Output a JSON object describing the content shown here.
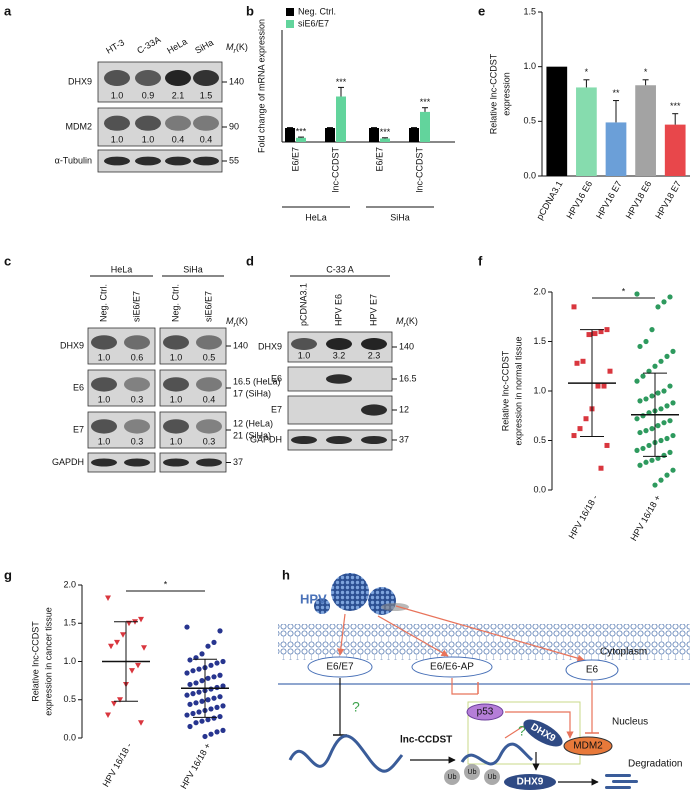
{
  "panel_labels": [
    "a",
    "b",
    "c",
    "d",
    "e",
    "f",
    "g",
    "h"
  ],
  "blots": {
    "a": {
      "mr": [
        "M",
        "r",
        "(K)"
      ],
      "lanes": [
        "HT-3",
        "C-33A",
        "HeLa",
        "SiHa"
      ],
      "rows": [
        {
          "label": "DHX9",
          "ratios": [
            "1.0",
            "0.9",
            "2.1",
            "1.5"
          ],
          "mw": [
            "140"
          ]
        },
        {
          "label": "MDM2",
          "ratios": [
            "1.0",
            "1.0",
            "0.4",
            "0.4"
          ],
          "mw": [
            "90"
          ]
        },
        {
          "label": "α-Tubulin",
          "mw": [
            "55"
          ]
        }
      ]
    },
    "c": {
      "mr": [
        "M",
        "r",
        "(K)"
      ],
      "groups": [
        "HeLa",
        "SiHa"
      ],
      "lanes": [
        "Neg. Ctrl.",
        "siE6/E7",
        "Neg. Ctrl.",
        "siE6/E7"
      ],
      "rows": [
        {
          "label": "DHX9",
          "ratios": [
            "1.0",
            "0.6",
            "1.0",
            "0.5"
          ],
          "mw": [
            "140"
          ]
        },
        {
          "label": "E6",
          "ratios": [
            "1.0",
            "0.3",
            "1.0",
            "0.4"
          ],
          "mw": [
            "16.5 (HeLa)",
            "17 (SiHa)"
          ]
        },
        {
          "label": "E7",
          "ratios": [
            "1.0",
            "0.3",
            "1.0",
            "0.3"
          ],
          "mw": [
            "12 (HeLa)",
            "21 (SiHa)"
          ]
        },
        {
          "label": "GAPDH",
          "mw": [
            "37"
          ]
        }
      ]
    },
    "d": {
      "mr": [
        "M",
        "r",
        "(K)"
      ],
      "groups": [
        "C-33 A"
      ],
      "lanes": [
        "pCDNA3.1",
        "HPV E6",
        "HPV E7"
      ],
      "rows": [
        {
          "label": "DHX9",
          "ratios": [
            "1.0",
            "3.2",
            "2.3"
          ],
          "mw": [
            "140"
          ]
        },
        {
          "label": "E6",
          "mw": [
            "16.5"
          ]
        },
        {
          "label": "E7",
          "mw": [
            "12"
          ]
        },
        {
          "label": "GAPDH",
          "mw": [
            "37"
          ]
        }
      ]
    }
  },
  "chart_data": [
    {
      "type": "groupbar",
      "ylabel": "Fold change of mRNA expression",
      "categories": [
        "E6/E7",
        "lnc-CCDST",
        "E6/E7",
        "lnc-CCDST"
      ],
      "groups": [
        "HeLa",
        "SiHa"
      ],
      "series": [
        {
          "name": "Neg. Ctrl.",
          "color": "#000000",
          "values": [
            1,
            1,
            1,
            1
          ],
          "errors": [
            0.03,
            0.03,
            0.03,
            0.03
          ]
        },
        {
          "name": "siE6/E7",
          "color": "#62d49c",
          "values": [
            0.3,
            3.25,
            0.25,
            2.15
          ],
          "errors": [
            0.05,
            0.65,
            0.05,
            0.3
          ],
          "significance": [
            "***",
            "***",
            "***",
            "***"
          ]
        }
      ],
      "ylim": [
        0,
        8
      ]
    },
    {
      "type": "bar",
      "ylabel": [
        "Relative lnc-CCDST",
        "expression"
      ],
      "categories": [
        "pCDNA3.1",
        "HPV16 E6",
        "HPV16 E7",
        "HPV18 E6",
        "HPV18 E7"
      ],
      "values": [
        1.0,
        0.81,
        0.49,
        0.83,
        0.47
      ],
      "errors": [
        0,
        0.07,
        0.2,
        0.05,
        0.1
      ],
      "colors": [
        "#000000",
        "#86dcae",
        "#6b9fd8",
        "#a3a3a3",
        "#e8474b"
      ],
      "significance": [
        null,
        "*",
        "**",
        "*",
        "***"
      ],
      "ylim": [
        0,
        1.5
      ],
      "yticks": [
        {
          "value": 0,
          "label": "0.0"
        },
        0.5,
        {
          "value": 1,
          "label": "1.0"
        },
        1.5
      ]
    },
    {
      "type": "strip",
      "ylabel": [
        "Relative lnc-CCDST",
        "expression in normal tissue"
      ],
      "categories": [
        "HPV 16/18 -",
        "HPV 16/18 +"
      ],
      "significance": "*",
      "groups": [
        {
          "color": "#d9363e",
          "marker": "square",
          "mean": 1.08,
          "sd": 0.54,
          "values": [
            1.85,
            1.62,
            1.6,
            1.58,
            1.57,
            1.3,
            1.28,
            1.2,
            1.05,
            1.05,
            0.82,
            0.72,
            0.62,
            0.55,
            0.45,
            0.22
          ]
        },
        {
          "color": "#2e9a5e",
          "marker": "circle",
          "mean": 0.76,
          "sd": 0.42,
          "values": [
            1.98,
            1.95,
            1.9,
            1.85,
            1.62,
            1.5,
            1.45,
            1.4,
            1.35,
            1.3,
            1.25,
            1.2,
            1.15,
            1.1,
            1.05,
            1.0,
            0.98,
            0.95,
            0.92,
            0.9,
            0.88,
            0.85,
            0.82,
            0.8,
            0.78,
            0.75,
            0.72,
            0.7,
            0.68,
            0.65,
            0.62,
            0.6,
            0.58,
            0.55,
            0.52,
            0.5,
            0.48,
            0.45,
            0.42,
            0.4,
            0.38,
            0.35,
            0.32,
            0.3,
            0.28,
            0.25,
            0.2,
            0.15,
            0.1,
            0.05
          ]
        }
      ],
      "ylim": [
        0,
        2
      ],
      "yticks": [
        {
          "value": 0,
          "label": "0.0"
        },
        0.5,
        {
          "value": 1,
          "label": "1.0"
        },
        1.5,
        {
          "value": 2,
          "label": "2.0"
        }
      ]
    },
    {
      "type": "strip",
      "ylabel": [
        "Relative lnc-CCDST",
        "expression in cancer tissue"
      ],
      "categories": [
        "HPV 16/18 -",
        "HPV 16/18 +"
      ],
      "significance": "*",
      "groups": [
        {
          "color": "#d9363e",
          "marker": "triangle",
          "mean": 1.0,
          "sd": 0.52,
          "values": [
            1.83,
            1.55,
            1.52,
            1.5,
            1.35,
            1.25,
            1.2,
            1.18,
            0.95,
            0.88,
            0.7,
            0.5,
            0.45,
            0.3,
            0.2
          ]
        },
        {
          "color": "#27358f",
          "marker": "circle",
          "mean": 0.65,
          "sd": 0.38,
          "values": [
            1.45,
            1.4,
            1.25,
            1.2,
            1.1,
            1.05,
            1.02,
            1.0,
            0.98,
            0.95,
            0.92,
            0.9,
            0.88,
            0.85,
            0.82,
            0.8,
            0.78,
            0.75,
            0.72,
            0.7,
            0.68,
            0.66,
            0.64,
            0.62,
            0.6,
            0.58,
            0.56,
            0.54,
            0.52,
            0.5,
            0.48,
            0.46,
            0.44,
            0.42,
            0.4,
            0.38,
            0.36,
            0.34,
            0.32,
            0.3,
            0.28,
            0.26,
            0.24,
            0.22,
            0.2,
            0.15,
            0.1,
            0.08,
            0.05,
            0.02
          ]
        }
      ],
      "ylim": [
        0,
        2
      ],
      "yticks": [
        {
          "value": 0,
          "label": "0.0"
        },
        0.5,
        {
          "value": 1,
          "label": "1.0"
        },
        1.5,
        {
          "value": 2,
          "label": "2.0"
        }
      ]
    }
  ],
  "diagram": {
    "hpv": "HPV",
    "e6e7": "E6/E7",
    "e6ap": "E6/E6-AP",
    "e6": "E6",
    "cytoplasm": "Cytoplasm",
    "nucleus": "Nucleus",
    "p53": "p53",
    "q1": "?",
    "q2": "?",
    "dhx9": "DHX9",
    "mdm2": "MDM2",
    "lnc": "lnc-CCDST",
    "ub": [
      "Ub",
      "Ub",
      "Ub"
    ],
    "dhx9_deg": "DHX9",
    "degradation": "Degradation"
  }
}
